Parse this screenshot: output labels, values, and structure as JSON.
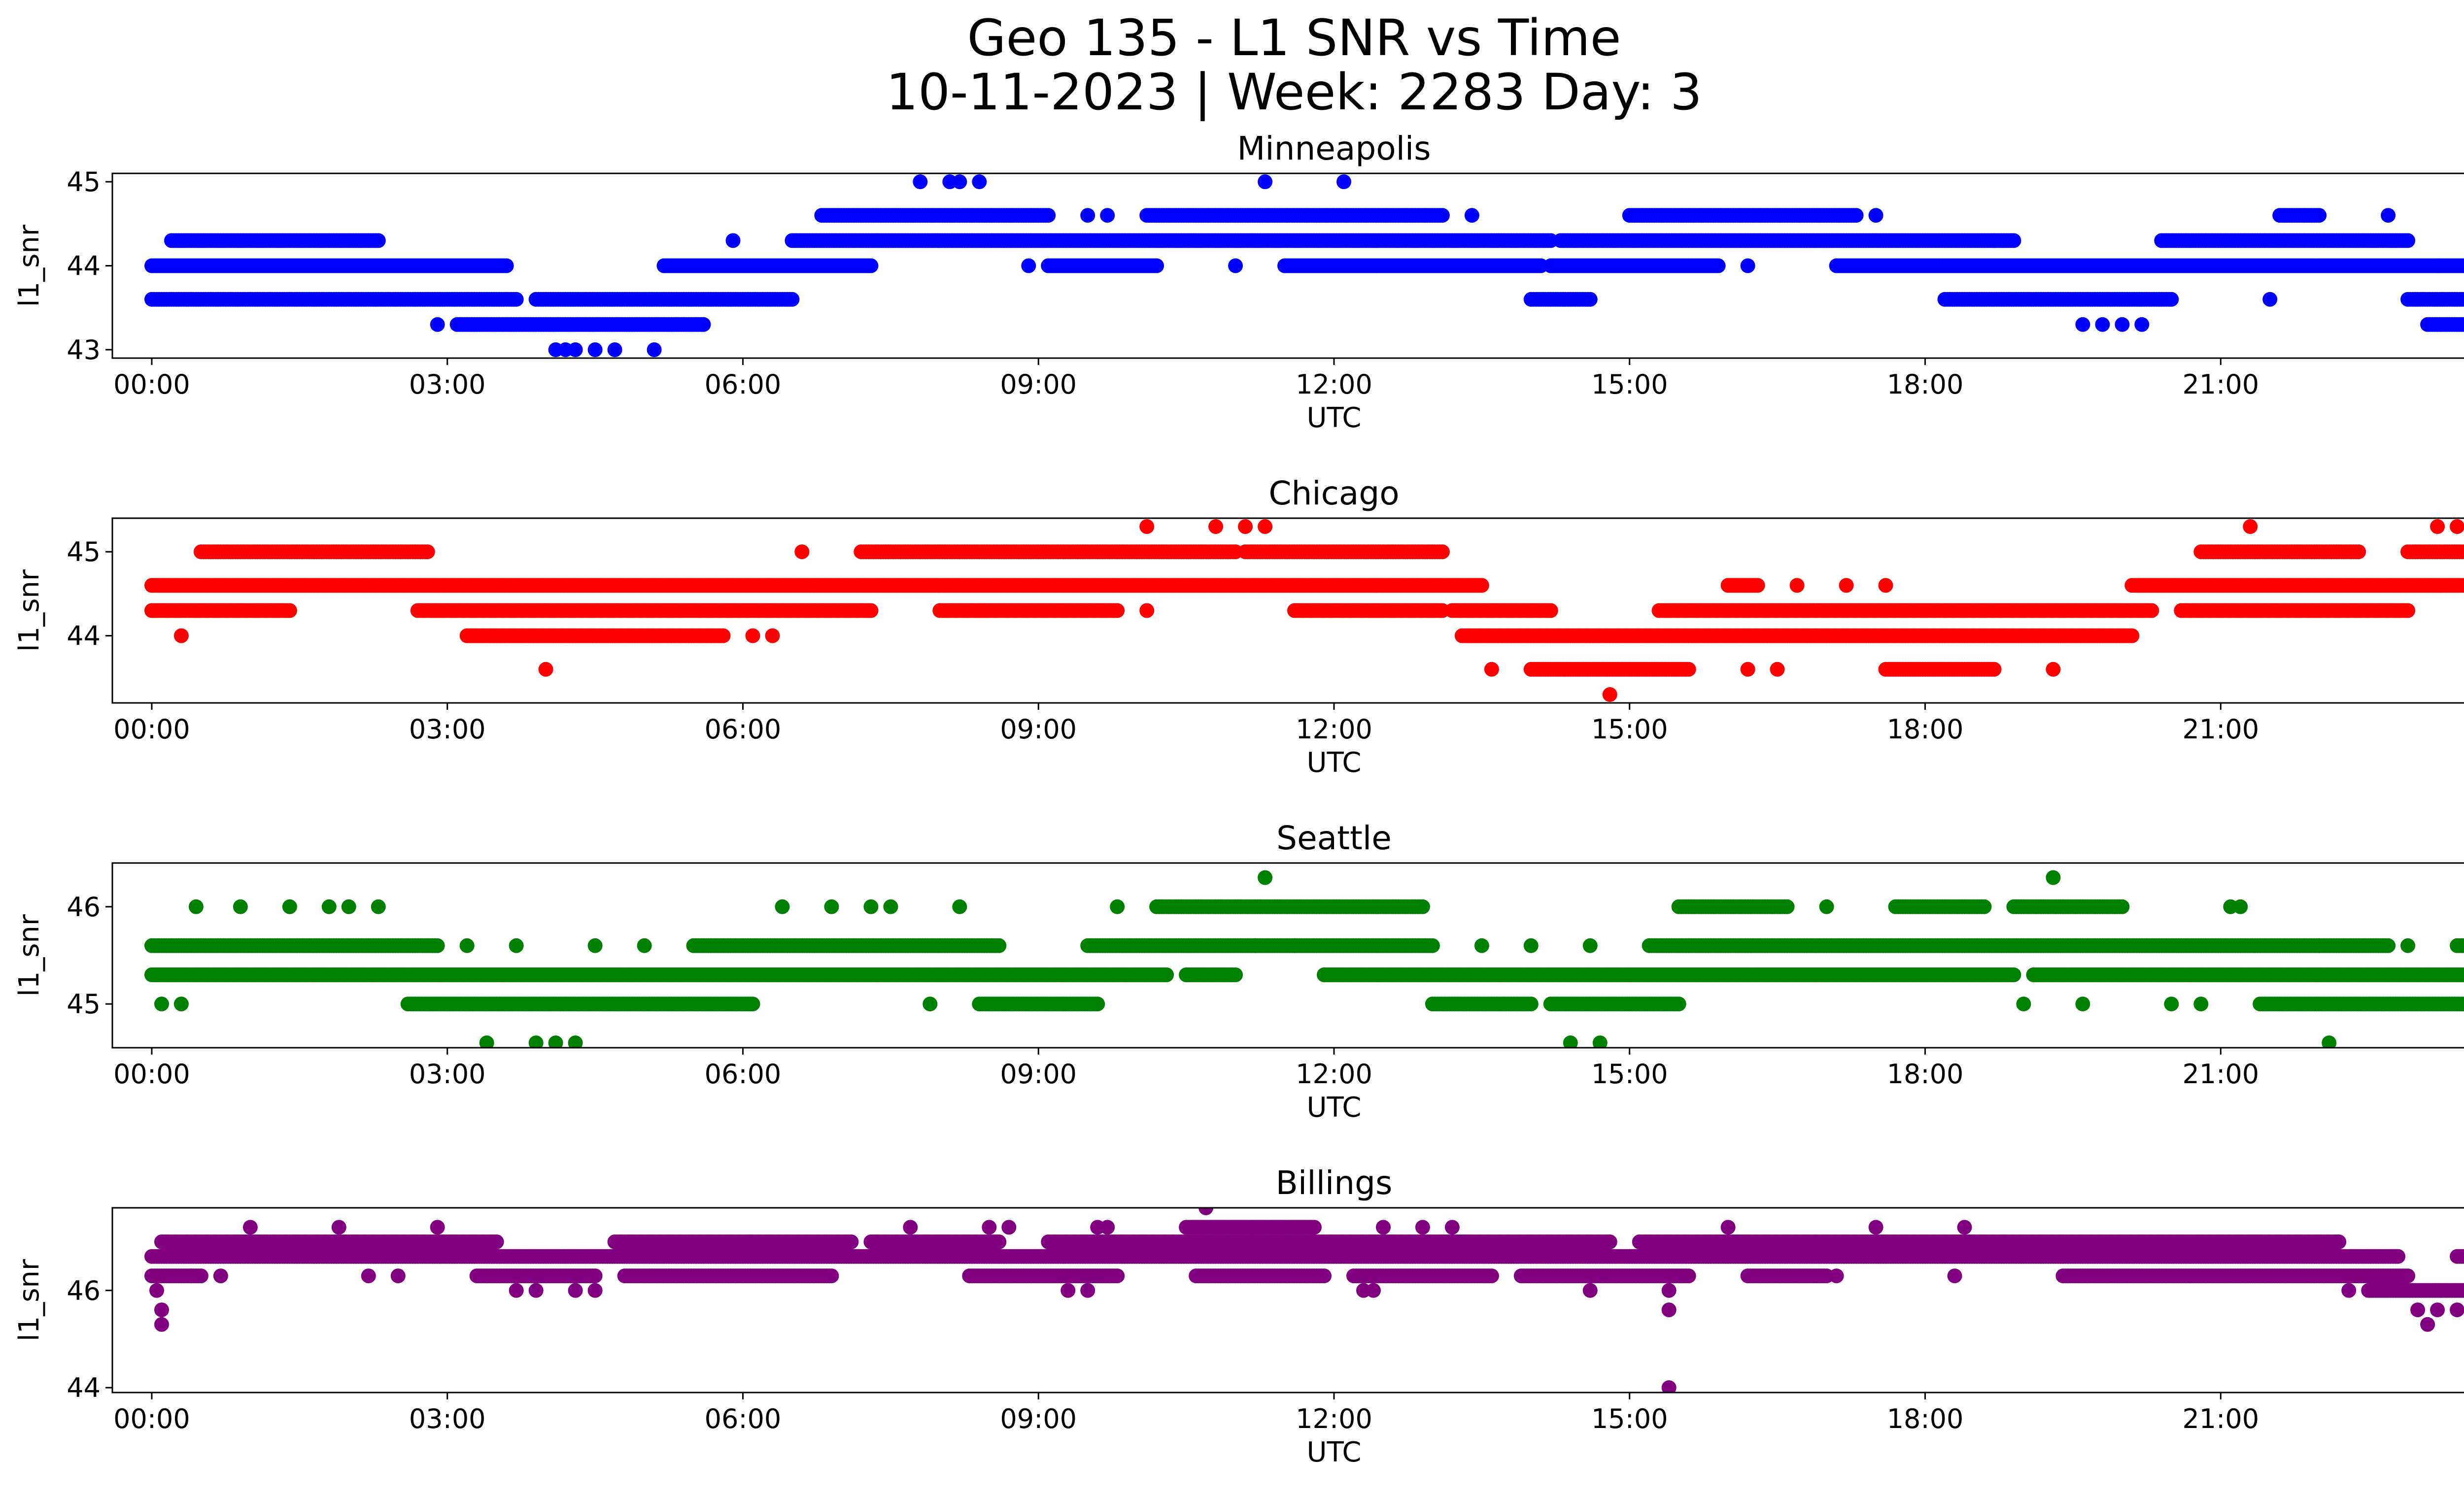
{
  "figure": {
    "title_line1": "Geo 135 - L1 SNR vs Time",
    "title_line2": "10-11-2023 | Week: 2283 Day: 3"
  },
  "chart_data": [
    {
      "type": "scatter",
      "title": "Minneapolis",
      "xlabel": "UTC",
      "ylabel": "l1_snr",
      "color": "#0000ff",
      "xlim": [
        -0.4,
        24.4
      ],
      "ylim": [
        42.9,
        45.1
      ],
      "x_ticks": [
        "00:00",
        "03:00",
        "06:00",
        "09:00",
        "12:00",
        "15:00",
        "18:00",
        "21:00",
        "00:00"
      ],
      "y_ticks": [
        43,
        44,
        45
      ],
      "levels": [
        {
          "y": 44.0,
          "ranges": [
            [
              0.0,
              3.6
            ],
            [
              5.2,
              7.3
            ],
            [
              9.1,
              10.2
            ],
            [
              11.5,
              14.1
            ],
            [
              14.2,
              15.9
            ],
            [
              17.1,
              23.8
            ]
          ]
        },
        {
          "y": 43.6,
          "ranges": [
            [
              0.0,
              3.7
            ],
            [
              3.9,
              6.5
            ],
            [
              14.0,
              14.6
            ],
            [
              18.2,
              20.5
            ],
            [
              22.9,
              24.0
            ]
          ]
        },
        {
          "y": 44.3,
          "ranges": [
            [
              0.2,
              2.3
            ],
            [
              6.5,
              14.2
            ],
            [
              14.3,
              18.9
            ],
            [
              20.4,
              22.9
            ]
          ]
        },
        {
          "y": 44.6,
          "ranges": [
            [
              6.8,
              9.1
            ],
            [
              10.1,
              13.1
            ],
            [
              15.0,
              17.3
            ],
            [
              21.6,
              22.0
            ]
          ]
        },
        {
          "y": 43.3,
          "ranges": [
            [
              3.1,
              5.6
            ],
            [
              23.1,
              24.0
            ]
          ]
        }
      ],
      "points": [
        [
          2.9,
          43.3
        ],
        [
          4.1,
          43.0
        ],
        [
          4.2,
          43.0
        ],
        [
          4.3,
          43.0
        ],
        [
          4.5,
          43.0
        ],
        [
          4.7,
          43.0
        ],
        [
          5.1,
          43.0
        ],
        [
          7.8,
          45.0
        ],
        [
          8.1,
          45.0
        ],
        [
          8.2,
          45.0
        ],
        [
          8.4,
          45.0
        ],
        [
          11.3,
          45.0
        ],
        [
          12.1,
          45.0
        ],
        [
          5.9,
          44.3
        ],
        [
          8.9,
          44.0
        ],
        [
          11.0,
          44.0
        ],
        [
          16.2,
          44.0
        ],
        [
          19.6,
          43.3
        ],
        [
          19.8,
          43.3
        ],
        [
          20.0,
          43.3
        ],
        [
          20.2,
          43.3
        ],
        [
          21.5,
          43.6
        ],
        [
          23.2,
          44.0
        ],
        [
          22.7,
          44.6
        ],
        [
          13.4,
          44.6
        ],
        [
          17.5,
          44.6
        ],
        [
          18.7,
          44.3
        ],
        [
          9.5,
          44.6
        ],
        [
          9.7,
          44.6
        ]
      ]
    },
    {
      "type": "scatter",
      "title": "Chicago",
      "xlabel": "UTC",
      "ylabel": "l1_snr",
      "color": "#ff0000",
      "xlim": [
        -0.4,
        24.4
      ],
      "ylim": [
        43.2,
        45.4
      ],
      "x_ticks": [
        "00:00",
        "03:00",
        "06:00",
        "09:00",
        "12:00",
        "15:00",
        "18:00",
        "21:00",
        "00:00"
      ],
      "y_ticks": [
        44,
        45
      ],
      "levels": [
        {
          "y": 44.6,
          "ranges": [
            [
              0.0,
              13.5
            ],
            [
              16.0,
              16.3
            ],
            [
              20.1,
              23.7
            ]
          ]
        },
        {
          "y": 44.3,
          "ranges": [
            [
              0.0,
              1.4
            ],
            [
              2.7,
              7.3
            ],
            [
              8.0,
              9.8
            ],
            [
              11.6,
              13.1
            ],
            [
              13.2,
              14.2
            ],
            [
              15.3,
              20.3
            ],
            [
              20.6,
              22.9
            ]
          ]
        },
        {
          "y": 45.0,
          "ranges": [
            [
              0.5,
              2.8
            ],
            [
              7.2,
              11.0
            ],
            [
              11.1,
              13.1
            ],
            [
              20.8,
              22.4
            ],
            [
              22.9,
              24.0
            ]
          ]
        },
        {
          "y": 44.0,
          "ranges": [
            [
              3.2,
              5.8
            ],
            [
              13.3,
              20.1
            ]
          ]
        },
        {
          "y": 43.6,
          "ranges": [
            [
              14.0,
              15.6
            ],
            [
              17.6,
              18.7
            ]
          ]
        }
      ],
      "points": [
        [
          0.3,
          44.0
        ],
        [
          4.0,
          43.6
        ],
        [
          10.1,
          45.3
        ],
        [
          10.8,
          45.3
        ],
        [
          11.1,
          45.3
        ],
        [
          11.3,
          45.3
        ],
        [
          14.8,
          43.3
        ],
        [
          21.3,
          45.3
        ],
        [
          23.2,
          45.3
        ],
        [
          23.4,
          45.3
        ],
        [
          23.6,
          45.3
        ],
        [
          23.8,
          45.3
        ],
        [
          23.9,
          45.3
        ],
        [
          24.0,
          45.3
        ],
        [
          13.6,
          43.6
        ],
        [
          16.2,
          43.6
        ],
        [
          16.5,
          43.6
        ],
        [
          19.3,
          43.6
        ],
        [
          16.7,
          44.6
        ],
        [
          17.2,
          44.6
        ],
        [
          17.6,
          44.6
        ],
        [
          6.1,
          44.0
        ],
        [
          6.3,
          44.0
        ],
        [
          6.6,
          45.0
        ],
        [
          8.4,
          44.3
        ],
        [
          10.1,
          44.3
        ]
      ]
    },
    {
      "type": "scatter",
      "title": "Seattle",
      "xlabel": "UTC",
      "ylabel": "l1_snr",
      "color": "#008000",
      "xlim": [
        -0.4,
        24.4
      ],
      "ylim": [
        44.55,
        46.45
      ],
      "x_ticks": [
        "00:00",
        "03:00",
        "06:00",
        "09:00",
        "12:00",
        "15:00",
        "18:00",
        "21:00",
        "00:00"
      ],
      "y_ticks": [
        45,
        46
      ],
      "levels": [
        {
          "y": 45.3,
          "ranges": [
            [
              0.0,
              10.3
            ],
            [
              10.5,
              11.0
            ],
            [
              11.9,
              18.9
            ],
            [
              19.1,
              24.0
            ]
          ]
        },
        {
          "y": 45.6,
          "ranges": [
            [
              0.0,
              2.9
            ],
            [
              5.5,
              8.6
            ],
            [
              9.5,
              13.0
            ],
            [
              15.2,
              22.7
            ],
            [
              23.4,
              24.0
            ]
          ]
        },
        {
          "y": 45.0,
          "ranges": [
            [
              2.6,
              6.1
            ],
            [
              8.4,
              9.6
            ],
            [
              13.0,
              14.0
            ],
            [
              14.2,
              15.5
            ],
            [
              21.4,
              24.0
            ]
          ]
        },
        {
          "y": 46.0,
          "ranges": [
            [
              10.2,
              12.9
            ],
            [
              15.5,
              16.6
            ],
            [
              17.7,
              18.6
            ],
            [
              18.9,
              20.0
            ]
          ]
        }
      ],
      "points": [
        [
          0.1,
          45.0
        ],
        [
          0.3,
          45.0
        ],
        [
          0.45,
          46.0
        ],
        [
          0.9,
          46.0
        ],
        [
          1.4,
          46.0
        ],
        [
          1.8,
          46.0
        ],
        [
          2.0,
          46.0
        ],
        [
          2.3,
          46.0
        ],
        [
          3.4,
          44.6
        ],
        [
          3.9,
          44.6
        ],
        [
          4.1,
          44.6
        ],
        [
          4.3,
          44.6
        ],
        [
          6.4,
          46.0
        ],
        [
          6.9,
          46.0
        ],
        [
          7.3,
          46.0
        ],
        [
          7.5,
          46.0
        ],
        [
          8.2,
          46.0
        ],
        [
          9.8,
          46.0
        ],
        [
          11.3,
          46.3
        ],
        [
          19.3,
          46.3
        ],
        [
          14.4,
          44.6
        ],
        [
          14.7,
          44.6
        ],
        [
          22.1,
          44.6
        ],
        [
          17.0,
          46.0
        ],
        [
          20.5,
          45.0
        ],
        [
          20.8,
          45.0
        ],
        [
          21.1,
          46.0
        ],
        [
          21.2,
          46.0
        ],
        [
          19.0,
          45.0
        ],
        [
          19.6,
          45.0
        ],
        [
          3.2,
          45.6
        ],
        [
          3.7,
          45.6
        ],
        [
          4.5,
          45.6
        ],
        [
          5.0,
          45.6
        ],
        [
          7.9,
          45.0
        ],
        [
          11.2,
          45.6
        ],
        [
          11.6,
          45.6
        ],
        [
          13.5,
          45.6
        ],
        [
          14.0,
          45.6
        ],
        [
          14.6,
          45.6
        ],
        [
          22.0,
          45.6
        ],
        [
          22.9,
          45.6
        ]
      ]
    },
    {
      "type": "scatter",
      "title": "Billings",
      "xlabel": "UTC",
      "ylabel": "l1_snr",
      "color": "#800080",
      "xlim": [
        -0.4,
        24.4
      ],
      "ylim": [
        43.9,
        47.7
      ],
      "x_ticks": [
        "00:00",
        "03:00",
        "06:00",
        "09:00",
        "12:00",
        "15:00",
        "18:00",
        "21:00",
        "00:00"
      ],
      "y_ticks": [
        44,
        46
      ],
      "levels": [
        {
          "y": 46.7,
          "ranges": [
            [
              0.0,
              22.8
            ],
            [
              23.4,
              24.0
            ]
          ]
        },
        {
          "y": 47.0,
          "ranges": [
            [
              0.1,
              3.5
            ],
            [
              4.7,
              7.1
            ],
            [
              7.3,
              8.6
            ],
            [
              9.1,
              14.8
            ],
            [
              15.1,
              22.2
            ]
          ]
        },
        {
          "y": 46.3,
          "ranges": [
            [
              0.0,
              0.5
            ],
            [
              3.3,
              4.5
            ],
            [
              4.8,
              6.9
            ],
            [
              8.3,
              9.8
            ],
            [
              10.6,
              11.9
            ],
            [
              12.2,
              13.6
            ],
            [
              13.9,
              15.6
            ],
            [
              16.2,
              17.0
            ],
            [
              19.4,
              22.9
            ]
          ]
        },
        {
          "y": 46.0,
          "ranges": [
            [
              22.5,
              24.0
            ]
          ]
        },
        {
          "y": 47.3,
          "ranges": [
            [
              10.5,
              11.8
            ]
          ]
        }
      ],
      "points": [
        [
          0.05,
          46.0
        ],
        [
          0.1,
          45.6
        ],
        [
          0.1,
          45.3
        ],
        [
          0.4,
          46.3
        ],
        [
          0.7,
          46.3
        ],
        [
          1.0,
          47.3
        ],
        [
          1.9,
          47.3
        ],
        [
          2.2,
          46.3
        ],
        [
          2.5,
          46.3
        ],
        [
          2.9,
          47.3
        ],
        [
          3.7,
          46.0
        ],
        [
          3.9,
          46.0
        ],
        [
          4.3,
          46.0
        ],
        [
          4.5,
          46.0
        ],
        [
          7.7,
          47.3
        ],
        [
          8.5,
          47.3
        ],
        [
          8.7,
          47.3
        ],
        [
          9.6,
          47.3
        ],
        [
          9.7,
          47.3
        ],
        [
          10.7,
          47.7
        ],
        [
          12.5,
          47.3
        ],
        [
          12.9,
          47.3
        ],
        [
          13.2,
          47.3
        ],
        [
          14.6,
          46.0
        ],
        [
          15.4,
          46.0
        ],
        [
          15.4,
          45.6
        ],
        [
          15.4,
          44.0
        ],
        [
          16.0,
          47.3
        ],
        [
          17.5,
          47.3
        ],
        [
          18.4,
          47.3
        ],
        [
          22.3,
          46.0
        ],
        [
          23.0,
          45.6
        ],
        [
          23.1,
          45.3
        ],
        [
          23.2,
          45.6
        ],
        [
          23.4,
          45.6
        ],
        [
          23.9,
          46.6
        ],
        [
          24.0,
          46.6
        ],
        [
          12.3,
          46.0
        ],
        [
          12.4,
          46.0
        ],
        [
          9.3,
          46.0
        ],
        [
          9.5,
          46.0
        ],
        [
          17.1,
          46.3
        ],
        [
          18.3,
          46.3
        ]
      ]
    }
  ]
}
